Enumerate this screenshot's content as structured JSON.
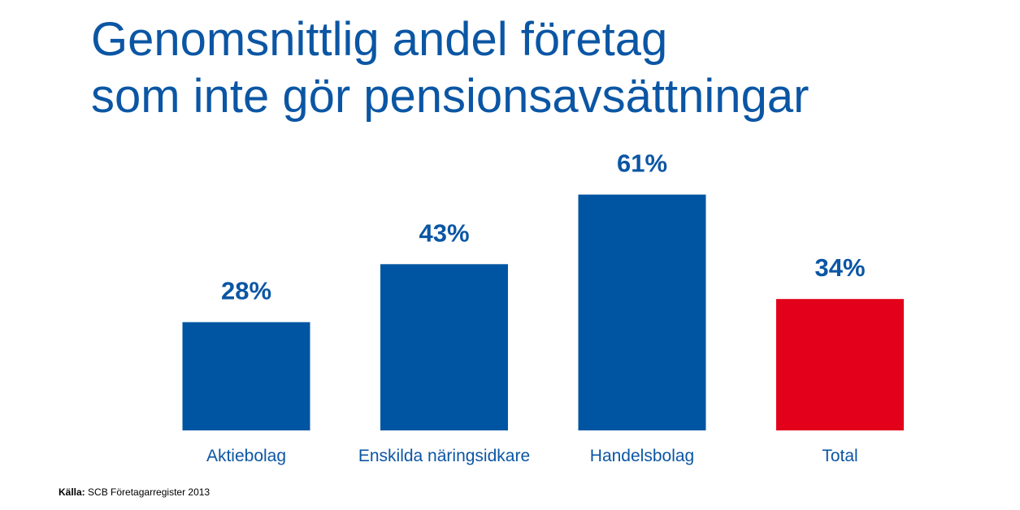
{
  "title": {
    "line1": "Genomsnittlig andel företag",
    "line2": "som inte gör pensionsavsättningar"
  },
  "source": {
    "label": "Källa:",
    "text": "SCB Företagarregister 2013"
  },
  "colors": {
    "title": "#0b56a4",
    "bar": "#0055a2",
    "highlight": "#e2001a",
    "value_label": "#0b56a4",
    "category_label": "#0b56a4"
  },
  "chart_data": {
    "type": "bar",
    "categories": [
      "Aktiebolag",
      "Enskilda näringsidkare",
      "Handelsbolag",
      "Total"
    ],
    "values": [
      28,
      43,
      61,
      34
    ],
    "value_labels": [
      "28%",
      "43%",
      "61%",
      "34%"
    ],
    "highlight_index": 3,
    "ylim": [
      0,
      70
    ],
    "grid": false,
    "legend": "none"
  }
}
